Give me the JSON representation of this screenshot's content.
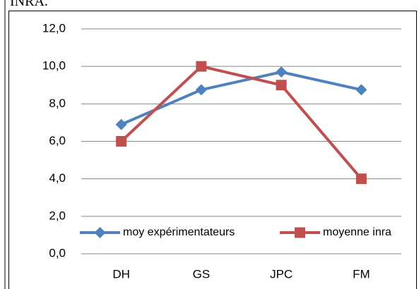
{
  "caption": "INRA.",
  "chart_data": {
    "type": "line",
    "categories": [
      "DH",
      "GS",
      "JPC",
      "FM"
    ],
    "series": [
      {
        "name": "moy expérimentateurs",
        "color": "#4f81bd",
        "marker": "diamond",
        "values": [
          6.9,
          8.75,
          9.7,
          8.75
        ]
      },
      {
        "name": "moyenne inra",
        "color": "#c0504d",
        "marker": "square",
        "values": [
          6,
          10,
          9,
          4
        ]
      }
    ],
    "ylim": [
      0,
      12
    ],
    "yticks": [
      {
        "value": 0,
        "label": "0,0"
      },
      {
        "value": 2,
        "label": "2,0"
      },
      {
        "value": 4,
        "label": "4,0"
      },
      {
        "value": 6,
        "label": "6,0"
      },
      {
        "value": 8,
        "label": "8,0"
      },
      {
        "value": 10,
        "label": "10,0"
      },
      {
        "value": 12,
        "label": "12,0"
      }
    ],
    "grid": true,
    "legend": "bottom"
  }
}
